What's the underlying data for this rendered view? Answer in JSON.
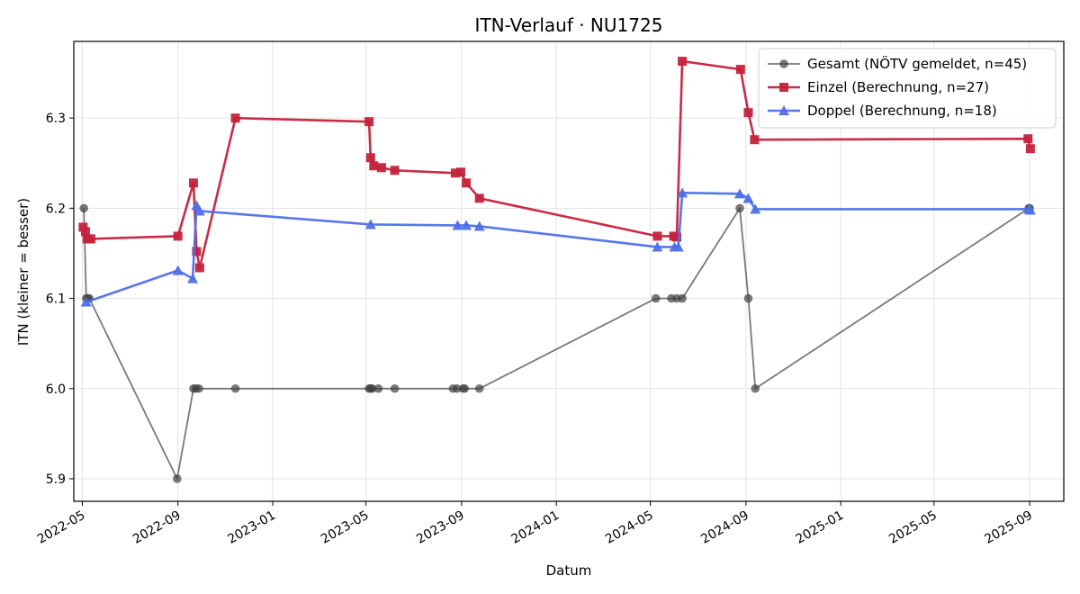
{
  "chart_data": {
    "type": "line",
    "title": "ITN-Verlauf · NU1725",
    "xlabel": "Datum",
    "ylabel": "ITN  (kleiner = besser)",
    "x_scale": "date",
    "xlim": [
      "2022-04-20",
      "2025-10-15"
    ],
    "ylim": [
      5.875,
      6.385
    ],
    "grid": true,
    "legend_position": "top-right",
    "x_ticks": [
      {
        "date": "2022-05-01",
        "label": "2022-05"
      },
      {
        "date": "2022-09-01",
        "label": "2022-09"
      },
      {
        "date": "2023-01-01",
        "label": "2023-01"
      },
      {
        "date": "2023-05-01",
        "label": "2023-05"
      },
      {
        "date": "2023-09-01",
        "label": "2023-09"
      },
      {
        "date": "2024-01-01",
        "label": "2024-01"
      },
      {
        "date": "2024-05-01",
        "label": "2024-05"
      },
      {
        "date": "2024-09-01",
        "label": "2024-09"
      },
      {
        "date": "2025-01-01",
        "label": "2025-01"
      },
      {
        "date": "2025-05-01",
        "label": "2025-05"
      },
      {
        "date": "2025-09-01",
        "label": "2025-09"
      }
    ],
    "y_ticks": [
      {
        "value": 5.9,
        "label": "5.9"
      },
      {
        "value": 6.0,
        "label": "6.0"
      },
      {
        "value": 6.1,
        "label": "6.1"
      },
      {
        "value": 6.2,
        "label": "6.2"
      },
      {
        "value": 6.3,
        "label": "6.3"
      }
    ],
    "series": [
      {
        "name": "Gesamt (NÖTV gemeldet, n=45)",
        "color": "#404040",
        "marker": "circle",
        "points": [
          [
            "2022-05-03",
            6.2
          ],
          [
            "2022-05-06",
            6.1
          ],
          [
            "2022-05-08",
            6.1
          ],
          [
            "2022-05-10",
            6.1
          ],
          [
            "2022-08-31",
            5.9
          ],
          [
            "2022-09-21",
            6.0
          ],
          [
            "2022-09-24",
            6.0
          ],
          [
            "2022-09-28",
            6.0
          ],
          [
            "2022-11-14",
            6.0
          ],
          [
            "2023-05-05",
            6.0
          ],
          [
            "2023-05-07",
            6.0
          ],
          [
            "2023-05-09",
            6.0
          ],
          [
            "2023-05-17",
            6.0
          ],
          [
            "2023-06-07",
            6.0
          ],
          [
            "2023-08-21",
            6.0
          ],
          [
            "2023-08-26",
            6.0
          ],
          [
            "2023-09-03",
            6.0
          ],
          [
            "2023-09-05",
            6.0
          ],
          [
            "2023-09-24",
            6.0
          ],
          [
            "2024-05-08",
            6.1
          ],
          [
            "2024-05-28",
            6.1
          ],
          [
            "2024-06-04",
            6.1
          ],
          [
            "2024-06-11",
            6.1
          ],
          [
            "2024-08-24",
            6.2
          ],
          [
            "2024-09-04",
            6.1
          ],
          [
            "2024-09-13",
            6.0
          ],
          [
            "2025-08-31",
            6.2
          ],
          [
            "2025-09-01",
            6.2
          ]
        ]
      },
      {
        "name": "Einzel (Berechnung, n=27)",
        "color": "#c4223b",
        "marker": "square",
        "points": [
          [
            "2022-05-02",
            6.179
          ],
          [
            "2022-05-05",
            6.174
          ],
          [
            "2022-05-07",
            6.166
          ],
          [
            "2022-05-12",
            6.166
          ],
          [
            "2022-09-01",
            6.169
          ],
          [
            "2022-09-21",
            6.228
          ],
          [
            "2022-09-25",
            6.152
          ],
          [
            "2022-09-29",
            6.134
          ],
          [
            "2022-11-14",
            6.3
          ],
          [
            "2023-05-05",
            6.296
          ],
          [
            "2023-05-07",
            6.256
          ],
          [
            "2023-05-11",
            6.247
          ],
          [
            "2023-05-21",
            6.245
          ],
          [
            "2023-06-07",
            6.242
          ],
          [
            "2023-08-24",
            6.239
          ],
          [
            "2023-08-31",
            6.24
          ],
          [
            "2023-09-07",
            6.228
          ],
          [
            "2023-09-24",
            6.211
          ],
          [
            "2024-05-10",
            6.169
          ],
          [
            "2024-05-31",
            6.169
          ],
          [
            "2024-06-04",
            6.168
          ],
          [
            "2024-06-11",
            6.363
          ],
          [
            "2024-08-25",
            6.354
          ],
          [
            "2024-09-04",
            6.306
          ],
          [
            "2024-09-12",
            6.276
          ],
          [
            "2025-08-30",
            6.277
          ],
          [
            "2025-09-02",
            6.266
          ]
        ]
      },
      {
        "name": "Doppel (Berechnung, n=18)",
        "color": "#4f6fe8",
        "marker": "triangle",
        "points": [
          [
            "2022-05-06",
            6.096
          ],
          [
            "2022-09-01",
            6.131
          ],
          [
            "2022-09-20",
            6.122
          ],
          [
            "2022-09-25",
            6.203
          ],
          [
            "2022-09-29",
            6.197
          ],
          [
            "2023-05-07",
            6.182
          ],
          [
            "2023-08-27",
            6.181
          ],
          [
            "2023-09-07",
            6.181
          ],
          [
            "2023-09-24",
            6.18
          ],
          [
            "2024-05-10",
            6.157
          ],
          [
            "2024-06-01",
            6.157
          ],
          [
            "2024-06-06",
            6.157
          ],
          [
            "2024-06-11",
            6.217
          ],
          [
            "2024-08-24",
            6.216
          ],
          [
            "2024-09-04",
            6.211
          ],
          [
            "2024-09-13",
            6.199
          ],
          [
            "2025-08-31",
            6.199
          ],
          [
            "2025-09-02",
            6.198
          ]
        ]
      }
    ]
  }
}
